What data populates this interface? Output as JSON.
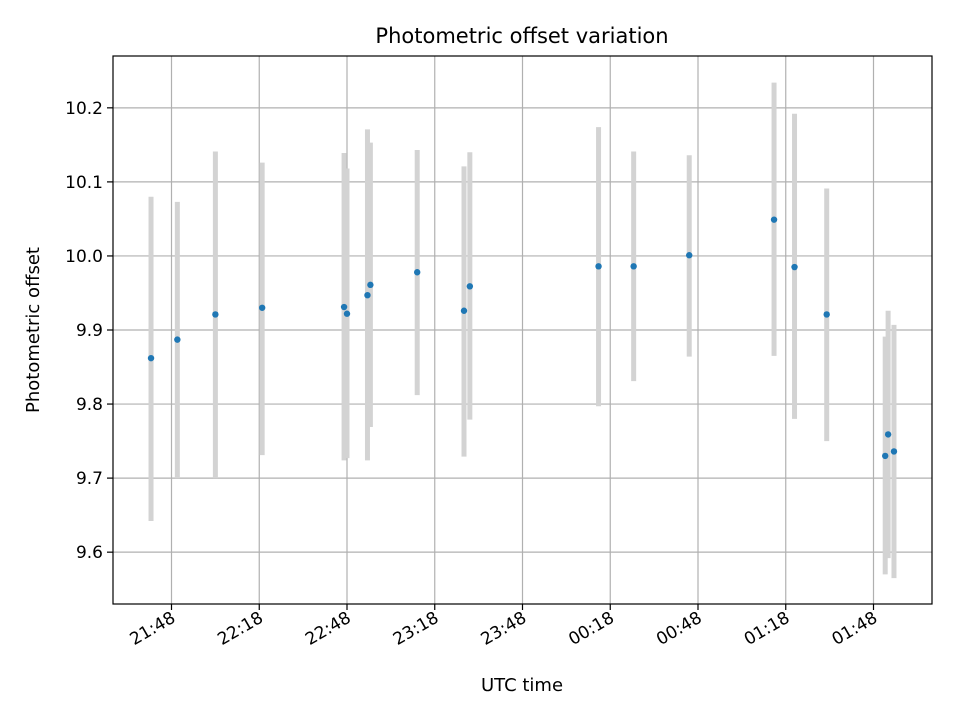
{
  "chart_data": {
    "type": "scatter",
    "title": "Photometric offset variation",
    "xlabel": "UTC time",
    "ylabel": "Photometric offset",
    "xlim": [
      "21:28",
      "02:08"
    ],
    "ylim": [
      9.53,
      10.27
    ],
    "x_ticks": [
      "21:48",
      "22:18",
      "22:48",
      "23:18",
      "23:48",
      "00:18",
      "00:48",
      "01:18",
      "01:48"
    ],
    "y_ticks": [
      "9.6",
      "9.7",
      "9.8",
      "9.9",
      "10.0",
      "10.1",
      "10.2"
    ],
    "grid": true,
    "colors": {
      "points": "#1f77b4",
      "error_bars": "#d3d3d3",
      "grid": "#b0b0b0"
    },
    "series": [
      {
        "points": [
          {
            "x": "21:41",
            "y": 9.862,
            "ymin": 9.642,
            "ymax": 10.08
          },
          {
            "x": "21:50",
            "y": 9.887,
            "ymin": 9.7,
            "ymax": 10.073
          },
          {
            "x": "22:03",
            "y": 9.921,
            "ymin": 9.7,
            "ymax": 10.141
          },
          {
            "x": "22:19",
            "y": 9.93,
            "ymin": 9.731,
            "ymax": 10.126
          },
          {
            "x": "22:47",
            "y": 9.931,
            "ymin": 9.724,
            "ymax": 10.139
          },
          {
            "x": "22:48",
            "y": 9.922,
            "ymin": 9.727,
            "ymax": 10.118
          },
          {
            "x": "22:55",
            "y": 9.947,
            "ymin": 9.724,
            "ymax": 10.171
          },
          {
            "x": "22:56",
            "y": 9.961,
            "ymin": 9.769,
            "ymax": 10.153
          },
          {
            "x": "23:12",
            "y": 9.978,
            "ymin": 9.812,
            "ymax": 10.143
          },
          {
            "x": "23:28",
            "y": 9.926,
            "ymin": 9.729,
            "ymax": 10.121
          },
          {
            "x": "23:30",
            "y": 9.959,
            "ymin": 9.779,
            "ymax": 10.14
          },
          {
            "x": "00:14",
            "y": 9.986,
            "ymin": 9.797,
            "ymax": 10.174
          },
          {
            "x": "00:26",
            "y": 9.986,
            "ymin": 9.831,
            "ymax": 10.141
          },
          {
            "x": "00:45",
            "y": 10.001,
            "ymin": 9.864,
            "ymax": 10.136
          },
          {
            "x": "01:14",
            "y": 10.049,
            "ymin": 9.865,
            "ymax": 10.234
          },
          {
            "x": "01:21",
            "y": 9.985,
            "ymin": 9.78,
            "ymax": 10.192
          },
          {
            "x": "01:32",
            "y": 9.921,
            "ymin": 9.75,
            "ymax": 10.091
          },
          {
            "x": "01:52",
            "y": 9.73,
            "ymin": 9.57,
            "ymax": 9.891
          },
          {
            "x": "01:53",
            "y": 9.759,
            "ymin": 9.592,
            "ymax": 9.926
          },
          {
            "x": "01:55",
            "y": 9.736,
            "ymin": 9.565,
            "ymax": 9.907
          }
        ]
      }
    ]
  }
}
